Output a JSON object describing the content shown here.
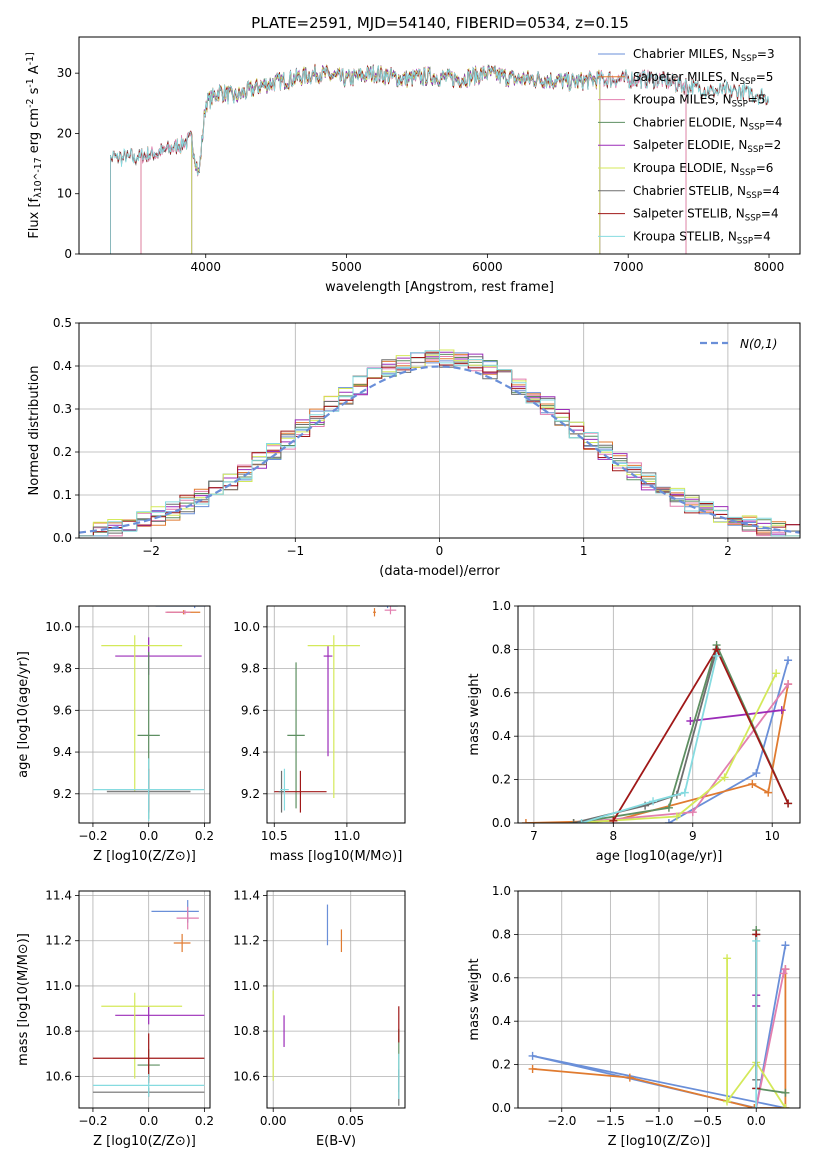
{
  "figure_title": "PLATE=2591, MJD=54140, FIBERID=0534, z=0.15",
  "colors": {
    "blue": "#6a8fd8",
    "orange": "#e07b30",
    "pink": "#e27faf",
    "green": "#5e8f62",
    "purple": "#9b2cb8",
    "yellow": "#d4e95a",
    "gray": "#6e6e6e",
    "red": "#a01818",
    "cyan": "#86dbe0"
  },
  "chart_data": [
    {
      "id": "spectrum",
      "type": "line",
      "xlabel": "wavelength [Angstrom, rest frame]",
      "ylabel": "Flux [f_λ10^-17 erg cm^-2 s^-1 A^-1]",
      "xlim": [
        3100,
        8220
      ],
      "ylim": [
        0,
        36
      ],
      "xticks": [
        4000,
        5000,
        6000,
        7000,
        8000
      ],
      "yticks": [
        0,
        10,
        20,
        30
      ],
      "grid": false,
      "legend_position": "top-right",
      "series": [
        {
          "name": "Chabrier MILES, N_SSP=3",
          "color": "blue"
        },
        {
          "name": "Salpeter MILES, N_SSP=5",
          "color": "orange"
        },
        {
          "name": "Kroupa MILES, N_SSP=5",
          "color": "pink"
        },
        {
          "name": "Chabrier ELODIE, N_SSP=4",
          "color": "green"
        },
        {
          "name": "Salpeter ELODIE, N_SSP=2",
          "color": "purple"
        },
        {
          "name": "Kroupa ELODIE, N_SSP=6",
          "color": "yellow"
        },
        {
          "name": "Chabrier STELIB, N_SSP=4",
          "color": "gray"
        },
        {
          "name": "Salpeter STELIB, N_SSP=4",
          "color": "red"
        },
        {
          "name": "Kroupa STELIB, N_SSP=4",
          "color": "cyan"
        }
      ],
      "data_envelope": {
        "x": [
          3300,
          3500,
          3700,
          3900,
          3950,
          4000,
          4100,
          4200,
          4400,
          4600,
          4800,
          5000,
          5200,
          5400,
          5600,
          5800,
          6000,
          6200,
          6400,
          6600,
          6800,
          7000,
          7200,
          7400,
          7600,
          7800,
          8000
        ],
        "y": [
          16,
          16,
          17,
          19,
          13,
          25,
          27,
          26,
          28,
          29,
          30,
          29,
          30,
          29,
          29.5,
          29,
          30,
          29,
          29,
          28.5,
          29,
          29,
          29,
          28,
          27,
          27,
          26
        ]
      },
      "model_ranges": {
        "MILES": [
          3540,
          7410
        ],
        "ELODIE": [
          3900,
          6800
        ],
        "STELIB": [
          3320,
          9000
        ]
      }
    },
    {
      "id": "residuals",
      "type": "line",
      "xlabel": "(data-model)/error",
      "ylabel": "Normed distribution",
      "xlim": [
        -2.5,
        2.5
      ],
      "ylim": [
        0,
        0.5
      ],
      "xticks": [
        -2,
        -1,
        0,
        1,
        2
      ],
      "yticks": [
        0.0,
        0.1,
        0.2,
        0.3,
        0.4,
        0.5
      ],
      "grid": true,
      "legend_position": "top-right",
      "legend": "N(0,1)",
      "reference_curve": {
        "type": "normal",
        "mean": 0,
        "sigma": 1,
        "style": "dashed",
        "color": "blue"
      },
      "histograms": {
        "x_start": -2.5,
        "bin_width": 0.1,
        "sigma": 0.95
      }
    },
    {
      "id": "age_vs_Z",
      "type": "scatter",
      "xlabel": "Z [log10(Z/Z⊙)]",
      "ylabel": "age [log10(age/yr)]",
      "xlim": [
        -0.25,
        0.22
      ],
      "ylim": [
        9.06,
        10.1
      ],
      "xticks": [
        -0.2,
        0.0,
        0.2
      ],
      "yticks": [
        9.2,
        9.4,
        9.6,
        9.8,
        10.0
      ],
      "grid": true,
      "points": [
        {
          "color": "blue",
          "x": 0.165,
          "y": 10.1,
          "xerr": [
            0.14,
            0.04
          ],
          "yerr": 0.01
        },
        {
          "color": "orange",
          "x": 0.125,
          "y": 10.07,
          "xerr": 0.06,
          "yerr": 0.01
        },
        {
          "color": "pink",
          "x": 0.13,
          "y": 10.07,
          "xerr": [
            0.07,
            0.02
          ],
          "yerr": 0.01
        },
        {
          "color": "purple",
          "x": 0.0,
          "y": 9.86,
          "xerr": [
            0.12,
            0.19
          ],
          "yerr": 0.09
        },
        {
          "color": "yellow",
          "x": -0.05,
          "y": 9.91,
          "xerr": [
            0.12,
            0.17
          ],
          "yerr": [
            0.7,
            0.05
          ]
        },
        {
          "color": "green",
          "x": 0.0,
          "y": 9.48,
          "xerr": 0.04,
          "yerr": 0.4
        },
        {
          "color": "red",
          "x": 0.0,
          "y": 9.22,
          "xerr": 0.15,
          "yerr": 0.1
        },
        {
          "color": "gray",
          "x": 0.0,
          "y": 9.21,
          "xerr": 0.15,
          "yerr": 0.1
        },
        {
          "color": "cyan",
          "x": 0.0,
          "y": 9.22,
          "xerr": 0.2,
          "yerr": 0.15
        }
      ]
    },
    {
      "id": "age_vs_mass",
      "type": "scatter",
      "xlabel": "mass [log10(M/M⊙)]",
      "ylabel": "",
      "xlim": [
        10.45,
        11.4
      ],
      "ylim": [
        9.06,
        10.1
      ],
      "xticks": [
        10.5,
        11.0
      ],
      "yticks": [
        9.2,
        9.4,
        9.6,
        9.8,
        10.0
      ],
      "grid": true,
      "points": [
        {
          "color": "blue",
          "x": 11.28,
          "y": 10.1,
          "xerr": 0.07,
          "yerr": 0.01
        },
        {
          "color": "orange",
          "x": 11.19,
          "y": 10.07,
          "xerr": 0.01,
          "yerr": 0.02
        },
        {
          "color": "pink",
          "x": 11.3,
          "y": 10.08,
          "xerr": 0.04,
          "yerr": 0.02
        },
        {
          "color": "purple",
          "x": 10.87,
          "y": 9.86,
          "xerr": 0.03,
          "yerr": [
            0.48,
            0.05
          ]
        },
        {
          "color": "yellow",
          "x": 10.91,
          "y": 9.91,
          "xerr": 0.18,
          "yerr": [
            0.73,
            0.05
          ]
        },
        {
          "color": "green",
          "x": 10.65,
          "y": 9.48,
          "xerr": 0.06,
          "yerr": 0.35
        },
        {
          "color": "red",
          "x": 10.68,
          "y": 9.21,
          "xerr": 0.18,
          "yerr": 0.1
        },
        {
          "color": "gray",
          "x": 10.55,
          "y": 9.21,
          "xerr": 0.02,
          "yerr": 0.1
        },
        {
          "color": "cyan",
          "x": 10.57,
          "y": 9.22,
          "xerr": 0.03,
          "yerr": 0.1
        }
      ]
    },
    {
      "id": "mass_weight_vs_age",
      "type": "line",
      "xlabel": "age [log10(age/yr)]",
      "ylabel": "mass weight",
      "xlim": [
        6.8,
        10.35
      ],
      "ylim": [
        0,
        1
      ],
      "xticks": [
        7,
        8,
        9,
        10
      ],
      "yticks": [
        0.0,
        0.2,
        0.4,
        0.6,
        0.8,
        1.0
      ],
      "grid": true,
      "series": [
        {
          "color": "blue",
          "x": [
            8.7,
            9.8,
            10.2
          ],
          "y": [
            0.0,
            0.23,
            0.75
          ]
        },
        {
          "color": "orange",
          "x": [
            6.9,
            8.0,
            9.75,
            9.95,
            10.2
          ],
          "y": [
            0.0,
            0.01,
            0.18,
            0.14,
            0.64
          ]
        },
        {
          "color": "pink",
          "x": [
            7.8,
            9.0,
            10.2
          ],
          "y": [
            0.01,
            0.05,
            0.64
          ]
        },
        {
          "color": "purple",
          "x": [
            8.97,
            10.12
          ],
          "y": [
            0.47,
            0.52
          ]
        },
        {
          "color": "yellow",
          "x": [
            7.5,
            8.8,
            9.4,
            10.05
          ],
          "y": [
            0.0,
            0.03,
            0.21,
            0.69
          ]
        },
        {
          "color": "green",
          "x": [
            7.5,
            8.7,
            9.3,
            10.2
          ],
          "y": [
            0.0,
            0.07,
            0.82,
            0.09
          ]
        },
        {
          "color": "gray",
          "x": [
            7.5,
            8.4,
            8.8,
            9.3
          ],
          "y": [
            0.0,
            0.08,
            0.13,
            0.8
          ]
        },
        {
          "color": "red",
          "x": [
            8.0,
            9.3,
            10.2
          ],
          "y": [
            0.01,
            0.8,
            0.09
          ]
        },
        {
          "color": "cyan",
          "x": [
            7.6,
            8.5,
            8.9,
            9.3
          ],
          "y": [
            0.0,
            0.1,
            0.14,
            0.77
          ]
        }
      ]
    },
    {
      "id": "mass_vs_Z",
      "type": "scatter",
      "xlabel": "Z [log10(Z/Z⊙)]",
      "ylabel": "mass [log10(M/M⊙)]",
      "xlim": [
        -0.25,
        0.22
      ],
      "ylim": [
        10.46,
        11.42
      ],
      "xticks": [
        -0.2,
        0.0,
        0.2
      ],
      "yticks": [
        10.6,
        10.8,
        11.0,
        11.2,
        11.4
      ],
      "grid": true,
      "points": [
        {
          "color": "blue",
          "x": 0.14,
          "y": 11.33,
          "xerr": [
            0.13,
            0.04
          ],
          "yerr": 0.05
        },
        {
          "color": "orange",
          "x": 0.12,
          "y": 11.19,
          "xerr": 0.03,
          "yerr": 0.04
        },
        {
          "color": "pink",
          "x": 0.14,
          "y": 11.3,
          "xerr": 0.04,
          "yerr": 0.05
        },
        {
          "color": "purple",
          "x": 0.0,
          "y": 10.87,
          "xerr": [
            0.12,
            0.2
          ],
          "yerr": 0.04
        },
        {
          "color": "yellow",
          "x": -0.05,
          "y": 10.91,
          "xerr": [
            0.12,
            0.17
          ],
          "yerr": [
            0.32,
            0.06
          ]
        },
        {
          "color": "green",
          "x": 0.0,
          "y": 10.65,
          "xerr": 0.04,
          "yerr": 0.07
        },
        {
          "color": "red",
          "x": 0.0,
          "y": 10.68,
          "xerr": 0.2,
          "yerr": 0.11
        },
        {
          "color": "gray",
          "x": 0.0,
          "y": 10.53,
          "xerr": 0.2,
          "yerr": 0.02
        },
        {
          "color": "cyan",
          "x": 0.0,
          "y": 10.56,
          "xerr": 0.2,
          "yerr": 0.05
        }
      ]
    },
    {
      "id": "mass_vs_ebv",
      "type": "scatter",
      "xlabel": "E(B-V)",
      "ylabel": "",
      "xlim": [
        -0.004,
        0.085
      ],
      "ylim": [
        10.46,
        11.42
      ],
      "xticks": [
        0.0,
        0.05
      ],
      "yticks": [
        10.6,
        10.8,
        11.0,
        11.2,
        11.4
      ],
      "grid": true,
      "points": [
        {
          "color": "blue",
          "x": 0.035,
          "y": 11.27,
          "yerr": 0.09
        },
        {
          "color": "orange",
          "x": 0.044,
          "y": 11.2,
          "yerr": 0.05
        },
        {
          "color": "purple",
          "x": 0.007,
          "y": 10.8,
          "yerr": 0.07
        },
        {
          "color": "yellow",
          "x": 0.0,
          "y": 10.78,
          "yerr": 0.2
        },
        {
          "color": "green",
          "x": 0.081,
          "y": 10.67,
          "yerr": 0.14
        },
        {
          "color": "red",
          "x": 0.081,
          "y": 10.83,
          "yerr": 0.08
        },
        {
          "color": "gray",
          "x": 0.081,
          "y": 10.55,
          "yerr": 0.08
        },
        {
          "color": "cyan",
          "x": 0.081,
          "y": 10.6,
          "yerr": 0.1
        }
      ]
    },
    {
      "id": "mass_weight_vs_Z",
      "type": "line",
      "xlabel": "Z [log10(Z/Z⊙)]",
      "ylabel": "mass weight",
      "xlim": [
        -2.45,
        0.45
      ],
      "ylim": [
        0,
        1
      ],
      "xticks": [
        -2.0,
        -1.5,
        -1.0,
        -0.5,
        0.0
      ],
      "yticks": [
        0.0,
        0.2,
        0.4,
        0.6,
        0.8,
        1.0
      ],
      "grid": true,
      "series": [
        {
          "color": "blue",
          "x": [
            0.3,
            -2.3,
            0.0,
            0.3
          ],
          "y": [
            0.0,
            0.24,
            0.0,
            0.75
          ]
        },
        {
          "color": "orange",
          "x": [
            -2.3,
            -1.3,
            -0.02,
            0.3,
            0.3
          ],
          "y": [
            0.18,
            0.14,
            0.0,
            0.0,
            0.64
          ]
        },
        {
          "color": "pink",
          "x": [
            0.0,
            0.28,
            0.3
          ],
          "y": [
            0.0,
            0.62,
            0.64
          ]
        },
        {
          "color": "purple",
          "x": [
            0.0,
            0.0
          ],
          "y": [
            0.47,
            0.52
          ]
        },
        {
          "color": "yellow",
          "x": [
            -0.3,
            -0.3,
            0.0,
            0.3
          ],
          "y": [
            0.69,
            0.03,
            0.21,
            0.0
          ]
        },
        {
          "color": "green",
          "x": [
            0.0,
            0.0,
            0.3
          ],
          "y": [
            0.82,
            0.09,
            0.07
          ]
        },
        {
          "color": "gray",
          "x": [
            0.0,
            0.0
          ],
          "y": [
            0.8,
            0.13
          ]
        },
        {
          "color": "red",
          "x": [
            0.0,
            0.0
          ],
          "y": [
            0.8,
            0.09
          ]
        },
        {
          "color": "cyan",
          "x": [
            0.0,
            0.0
          ],
          "y": [
            0.77,
            0.0
          ]
        }
      ]
    }
  ]
}
